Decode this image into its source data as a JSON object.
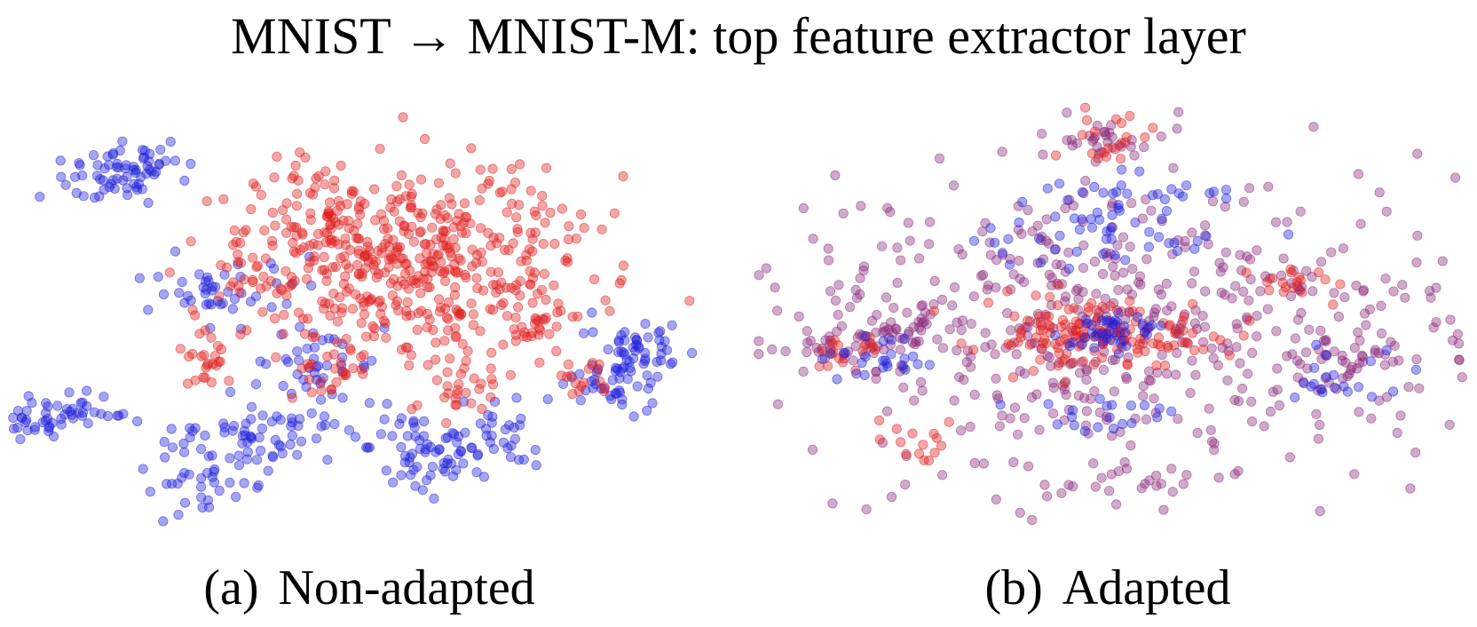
{
  "title": "MNIST → MNIST-M: top feature extractor layer",
  "colors": {
    "source": "#1f1fdc",
    "target": "#e01f1f",
    "mixed": "#8a2a7a"
  },
  "chart_data": [
    {
      "type": "scatter",
      "caption_label": "(a)",
      "caption_text": "Non-adapted",
      "xlim": [
        0,
        100
      ],
      "ylim": [
        0,
        100
      ],
      "series": [
        {
          "color_key": "source",
          "clusters": [
            {
              "x": 6,
              "y": 74,
              "dx": 5.5,
              "dy": 2.2,
              "n": 60,
              "rot": -22
            },
            {
              "x": 27,
              "y": 85,
              "dx": 5.0,
              "dy": 6.5,
              "n": 55,
              "rot": 0
            },
            {
              "x": 13,
              "y": 18,
              "dx": 4.0,
              "dy": 3.5,
              "n": 40,
              "rot": 0
            },
            {
              "x": 19,
              "y": 14,
              "dx": 3.5,
              "dy": 2.6,
              "n": 30,
              "rot": 0
            },
            {
              "x": 28,
              "y": 44,
              "dx": 5.0,
              "dy": 4.0,
              "n": 45,
              "rot": 0
            },
            {
              "x": 38,
              "y": 78,
              "dx": 5.5,
              "dy": 3.2,
              "n": 45,
              "rot": -10
            },
            {
              "x": 42,
              "y": 62,
              "dx": 4.5,
              "dy": 3.5,
              "n": 40,
              "rot": 0
            },
            {
              "x": 58,
              "y": 82,
              "dx": 4.0,
              "dy": 6.0,
              "n": 60,
              "rot": 0
            },
            {
              "x": 67,
              "y": 78,
              "dx": 4.0,
              "dy": 5.0,
              "n": 35,
              "rot": 0
            },
            {
              "x": 88,
              "y": 57,
              "dx": 3.0,
              "dy": 3.0,
              "n": 45,
              "rot": 0
            },
            {
              "x": 85,
              "y": 67,
              "dx": 3.5,
              "dy": 3.0,
              "n": 40,
              "rot": 0
            }
          ]
        },
        {
          "color_key": "target",
          "clusters": [
            {
              "x": 57,
              "y": 37,
              "dx": 12.0,
              "dy": 12.0,
              "n": 420,
              "rot": 0
            },
            {
              "x": 43,
              "y": 30,
              "dx": 6.0,
              "dy": 6.0,
              "n": 90,
              "rot": 0
            },
            {
              "x": 44,
              "y": 63,
              "dx": 3.0,
              "dy": 3.0,
              "n": 25,
              "rot": 0
            },
            {
              "x": 28,
              "y": 60,
              "dx": 2.0,
              "dy": 4.0,
              "n": 25,
              "rot": 0
            },
            {
              "x": 74,
              "y": 52,
              "dx": 2.5,
              "dy": 2.0,
              "n": 25,
              "rot": 0
            },
            {
              "x": 62,
              "y": 68,
              "dx": 3.0,
              "dy": 3.5,
              "n": 30,
              "rot": 0
            },
            {
              "x": 80,
              "y": 65,
              "dx": 2.5,
              "dy": 2.0,
              "n": 15,
              "rot": 0
            },
            {
              "x": 36,
              "y": 42,
              "dx": 4.0,
              "dy": 3.0,
              "n": 20,
              "rot": 0
            }
          ]
        }
      ]
    },
    {
      "type": "scatter",
      "caption_label": "(b)",
      "caption_text": "Adapted",
      "xlim": [
        0,
        100
      ],
      "ylim": [
        0,
        100
      ],
      "series": [
        {
          "color_key": "mixed",
          "clusters": [
            {
              "x": 50,
              "y": 50,
              "dx": 26.0,
              "dy": 18.0,
              "n": 540,
              "rot": 0
            },
            {
              "x": 14,
              "y": 57,
              "dx": 3.5,
              "dy": 3.0,
              "n": 30,
              "rot": 0
            },
            {
              "x": 21,
              "y": 55,
              "dx": 3.0,
              "dy": 3.0,
              "n": 25,
              "rot": 0
            },
            {
              "x": 85,
              "y": 60,
              "dx": 4.0,
              "dy": 3.0,
              "n": 30,
              "rot": 0
            },
            {
              "x": 50,
              "y": 8,
              "dx": 3.5,
              "dy": 3.0,
              "n": 25,
              "rot": 0
            },
            {
              "x": 50,
              "y": 90,
              "dx": 10.0,
              "dy": 3.0,
              "n": 30,
              "rot": 0
            }
          ]
        },
        {
          "color_key": "target",
          "clusters": [
            {
              "x": 48,
              "y": 55,
              "dx": 8.0,
              "dy": 4.5,
              "n": 150,
              "rot": 0
            },
            {
              "x": 50,
              "y": 8,
              "dx": 3.0,
              "dy": 2.5,
              "n": 20,
              "rot": 0
            },
            {
              "x": 14,
              "y": 59,
              "dx": 2.5,
              "dy": 2.5,
              "n": 18,
              "rot": 0
            },
            {
              "x": 76,
              "y": 42,
              "dx": 3.5,
              "dy": 2.0,
              "n": 18,
              "rot": 0
            },
            {
              "x": 24,
              "y": 80,
              "dx": 3.0,
              "dy": 3.0,
              "n": 15,
              "rot": 0
            }
          ]
        },
        {
          "color_key": "source",
          "clusters": [
            {
              "x": 50,
              "y": 54,
              "dx": 3.0,
              "dy": 2.5,
              "n": 40,
              "rot": 0
            },
            {
              "x": 50,
              "y": 22,
              "dx": 8.0,
              "dy": 3.0,
              "n": 35,
              "rot": 0
            },
            {
              "x": 50,
              "y": 32,
              "dx": 9.0,
              "dy": 3.0,
              "n": 35,
              "rot": 0
            },
            {
              "x": 18,
              "y": 60,
              "dx": 4.0,
              "dy": 4.0,
              "n": 25,
              "rot": 0
            },
            {
              "x": 80,
              "y": 66,
              "dx": 4.0,
              "dy": 3.0,
              "n": 20,
              "rot": 0
            },
            {
              "x": 47,
              "y": 74,
              "dx": 6.0,
              "dy": 3.0,
              "n": 20,
              "rot": 0
            }
          ]
        }
      ]
    }
  ]
}
